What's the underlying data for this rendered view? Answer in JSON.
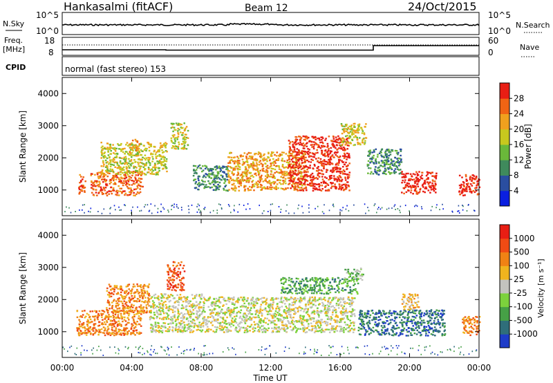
{
  "header": {
    "station": "Hankasalmi (fitACF)",
    "beam": "Beam 12",
    "date": "24/Oct/2015"
  },
  "strips": {
    "nsky_label": "N.Sky",
    "nsky_ticks": [
      "10^5",
      "10^0"
    ],
    "nsearch_label": "N.Search",
    "nsearch_ticks": [
      "10^5",
      "10^0"
    ],
    "freq_label": "Freq.",
    "freq_unit": "[MHz]",
    "freq_ticks": [
      "18",
      "8"
    ],
    "nave_label": "Nave",
    "nave_ticks": [
      "60",
      "0"
    ],
    "cpid_label": "CPID",
    "cpid_text": "normal (fast stereo) 153"
  },
  "chart_data": [
    {
      "type": "heatmap",
      "name": "power",
      "ylabel": "Slant Range [km]",
      "yticks": [
        "4000",
        "3000",
        "2000",
        "1000"
      ],
      "ylim": [
        200,
        4500
      ],
      "colorbar_label": "Power [dB]",
      "colorbar_ticks": [
        "28",
        "24",
        "20",
        "16",
        "12",
        "8",
        "4"
      ],
      "colors": [
        "#0a1fe0",
        "#2a4ea0",
        "#3f8a5c",
        "#6ab83a",
        "#c8c81e",
        "#f0a01e",
        "#f06414",
        "#e81e14"
      ],
      "clusters": [
        {
          "t": [
            0.9,
            1.3
          ],
          "r": [
            900,
            1500
          ],
          "level": 6
        },
        {
          "t": [
            1.6,
            4.6
          ],
          "r": [
            850,
            1600
          ],
          "level": 6
        },
        {
          "t": [
            2.2,
            6.0
          ],
          "r": [
            1500,
            2500
          ],
          "level": 4
        },
        {
          "t": [
            3.8,
            4.4
          ],
          "r": [
            2200,
            2600
          ],
          "level": 5
        },
        {
          "t": [
            6.2,
            7.2
          ],
          "r": [
            2300,
            3100
          ],
          "level": 4
        },
        {
          "t": [
            7.5,
            9.5
          ],
          "r": [
            1000,
            1800
          ],
          "level": 2
        },
        {
          "t": [
            9.5,
            14.0
          ],
          "r": [
            1000,
            2200
          ],
          "level": 5
        },
        {
          "t": [
            13.0,
            16.5
          ],
          "r": [
            1000,
            2700
          ],
          "level": 7
        },
        {
          "t": [
            16.0,
            17.5
          ],
          "r": [
            2400,
            3100
          ],
          "level": 4
        },
        {
          "t": [
            17.5,
            19.5
          ],
          "r": [
            1500,
            2300
          ],
          "level": 2
        },
        {
          "t": [
            19.5,
            21.5
          ],
          "r": [
            900,
            1600
          ],
          "level": 7
        },
        {
          "t": [
            22.8,
            24.0
          ],
          "r": [
            850,
            1500
          ],
          "level": 7
        }
      ]
    },
    {
      "type": "heatmap",
      "name": "velocity",
      "ylabel": "Slant Range [km]",
      "yticks": [
        "4000",
        "3000",
        "2000",
        "1000"
      ],
      "ylim": [
        200,
        4500
      ],
      "colorbar_label": "Velocity [m s⁻¹]",
      "colorbar_ticks": [
        "1000",
        "500",
        "100",
        "25",
        "-25",
        "-100",
        "-500",
        "-1000"
      ],
      "colors": [
        "#1e3cc8",
        "#2f6e7a",
        "#46a046",
        "#7cd23c",
        "#c3c3be",
        "#f0b41e",
        "#f08214",
        "#f04b14",
        "#e81e14"
      ],
      "clusters": [
        {
          "t": [
            0.8,
            4.5
          ],
          "r": [
            900,
            1700
          ],
          "level": 6
        },
        {
          "t": [
            2.5,
            5.0
          ],
          "r": [
            1600,
            2500
          ],
          "level": 6
        },
        {
          "t": [
            5.0,
            8.0
          ],
          "r": [
            1000,
            2200
          ],
          "level": 4
        },
        {
          "t": [
            6.0,
            7.0
          ],
          "r": [
            2300,
            3200
          ],
          "level": 7
        },
        {
          "t": [
            8.0,
            16.8
          ],
          "r": [
            1000,
            2100
          ],
          "level": 4
        },
        {
          "t": [
            12.5,
            17.0
          ],
          "r": [
            2200,
            2700
          ],
          "level": 2
        },
        {
          "t": [
            16.2,
            17.3
          ],
          "r": [
            2600,
            3000
          ],
          "level": 3
        },
        {
          "t": [
            17.0,
            22.0
          ],
          "r": [
            900,
            1700
          ],
          "level": 1
        },
        {
          "t": [
            19.5,
            20.5
          ],
          "r": [
            1700,
            2200
          ],
          "level": 5
        },
        {
          "t": [
            23.0,
            24.0
          ],
          "r": [
            900,
            1500
          ],
          "level": 6
        }
      ]
    }
  ],
  "xaxis": {
    "ticks": [
      "00:00",
      "04:00",
      "08:00",
      "12:00",
      "16:00",
      "20:00",
      "00:00"
    ],
    "label": "Time UT",
    "xlim": [
      0,
      24
    ]
  }
}
